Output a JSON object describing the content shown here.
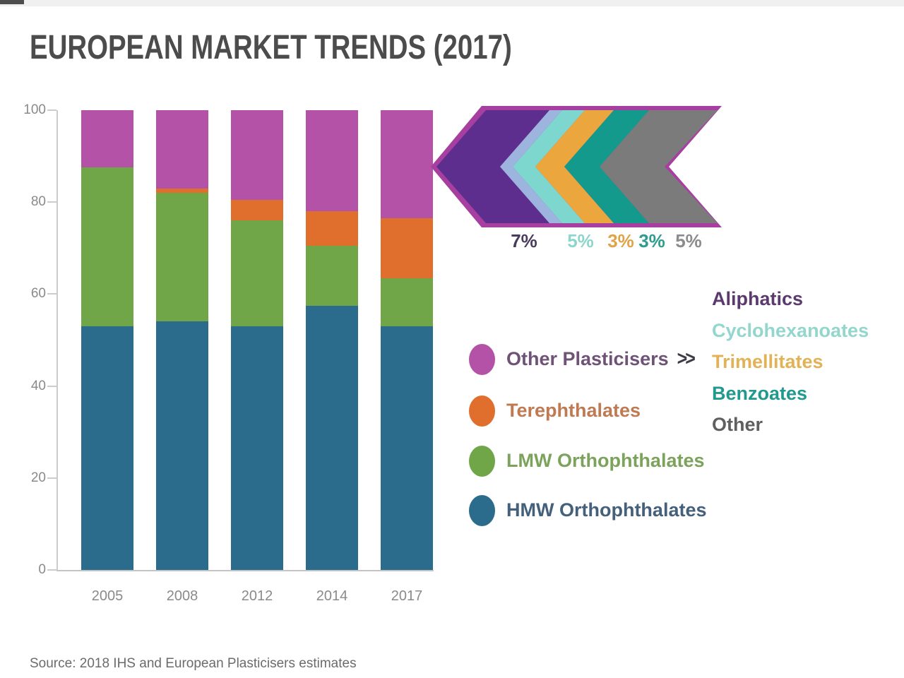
{
  "page": {
    "title": "EUROPEAN MARKET TRENDS (2017)",
    "source": "Source: 2018 IHS and European Plasticisers estimates"
  },
  "chart_data": {
    "type": "bar",
    "stacked": true,
    "title": "EUROPEAN MARKET TRENDS (2017)",
    "categories": [
      "2005",
      "2008",
      "2012",
      "2014",
      "2017"
    ],
    "series": [
      {
        "name": "HMW Orthophthalates",
        "color": "#2b6b8b",
        "values": [
          53,
          54,
          53,
          57.5,
          53
        ]
      },
      {
        "name": "LMW Orthophthalates",
        "color": "#70a647",
        "values": [
          34.5,
          28,
          23,
          13,
          10.5
        ]
      },
      {
        "name": "Terephthalates",
        "color": "#e06e2d",
        "values": [
          0,
          1,
          4.5,
          7.5,
          13
        ]
      },
      {
        "name": "Other Plasticisers",
        "color": "#b352a7",
        "values": [
          12.5,
          17,
          19.5,
          22,
          23.5
        ]
      }
    ],
    "xlabel": "",
    "ylabel": "",
    "ylim": [
      0,
      100
    ],
    "yticks": [
      0,
      20,
      40,
      60,
      80,
      100
    ],
    "grid": false,
    "legend_position": "right of chart"
  },
  "legend": {
    "more_glyph": ">>",
    "items": [
      {
        "label": "Other Plasticisers",
        "dot_color": "#b352a7",
        "text_color": "#6f5377",
        "has_more": true
      },
      {
        "label": "Terephthalates",
        "dot_color": "#e06e2d",
        "text_color": "#c07a52",
        "has_more": false
      },
      {
        "label": "LMW Orthophthalates",
        "dot_color": "#70a647",
        "text_color": "#7ba35c",
        "has_more": false
      },
      {
        "label": "HMW Orthophthalates",
        "dot_color": "#2b6b8b",
        "text_color": "#44607a",
        "has_more": false
      }
    ]
  },
  "breakdown": {
    "outline_color": "#a73fa0",
    "sliver_color": "#9cb4de",
    "items": [
      {
        "label": "Aliphatics",
        "pct": "7%",
        "band_color": "#5e2e8e",
        "list_color": "#5c3a70",
        "pct_color": "#4a3d5c"
      },
      {
        "label": "Cyclohexanoates",
        "pct": "5%",
        "band_color": "#7ed7ce",
        "list_color": "#92d6cd",
        "pct_color": "#8ed6cd"
      },
      {
        "label": "Trimellitates",
        "pct": "3%",
        "band_color": "#eca63e",
        "list_color": "#e2b257",
        "pct_color": "#dfa447"
      },
      {
        "label": "Benzoates",
        "pct": "3%",
        "band_color": "#149a8c",
        "list_color": "#22998e",
        "pct_color": "#2e9c8e"
      },
      {
        "label": "Other",
        "pct": "5%",
        "band_color": "#7b7b7b",
        "list_color": "#5f5f5f",
        "pct_color": "#8c8c8c"
      }
    ]
  },
  "colors": {
    "title_text": "#4c4c4c",
    "axis_line": "#cccccc",
    "axis_text": "#8a8a8a",
    "background": "#ffffff"
  }
}
